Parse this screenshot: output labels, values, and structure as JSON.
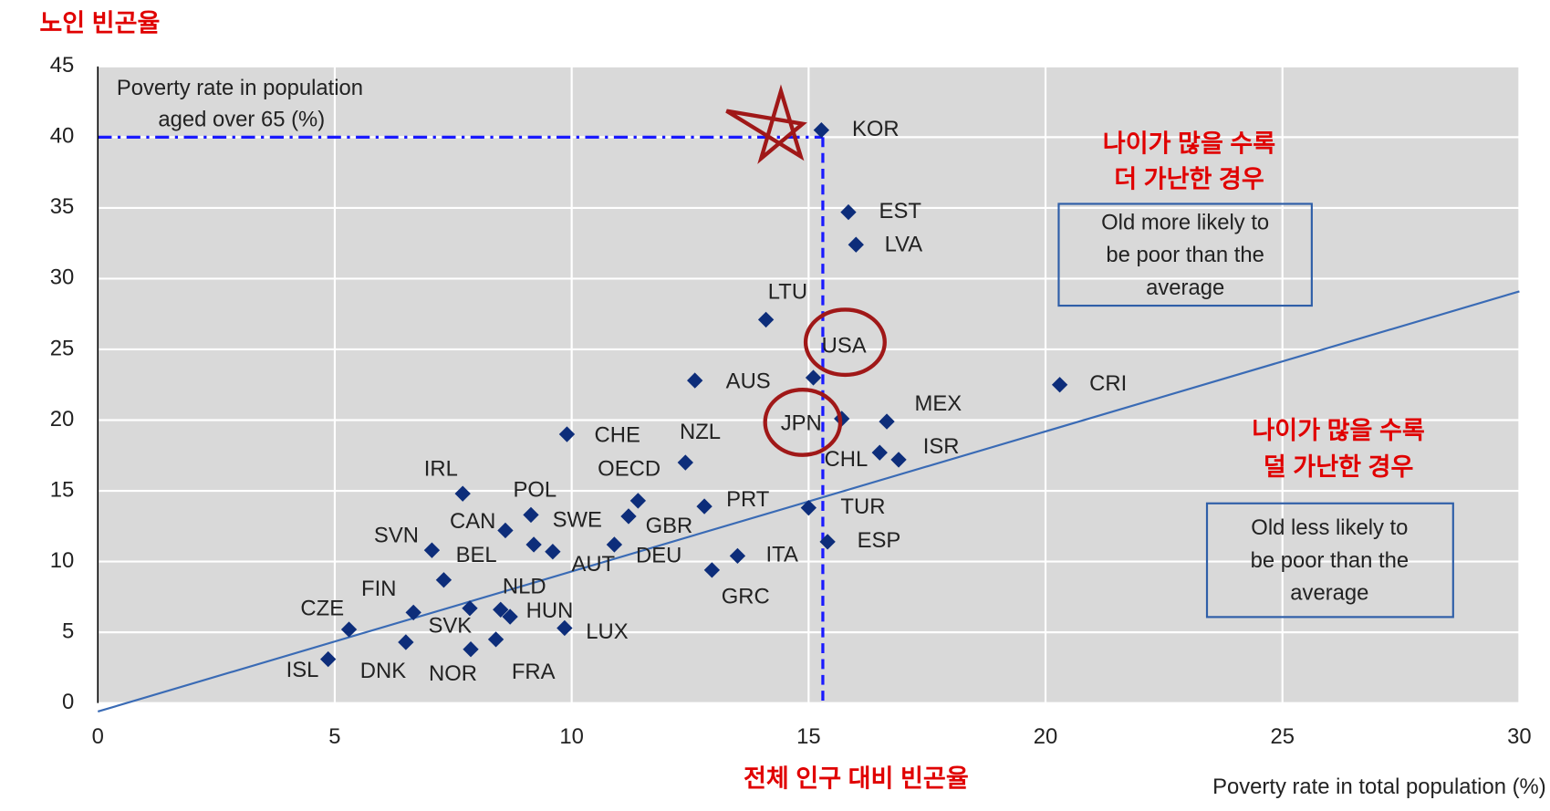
{
  "chart_data": {
    "type": "scatter",
    "title": "노인 빈곤율",
    "subtitle": "전체 인구 대비 빈곤율",
    "ylabel": [
      "Poverty rate in population",
      "aged over 65 (%)"
    ],
    "xlabel": "Poverty rate in total population (%)",
    "labels": [
      "KOR",
      "EST",
      "LVA",
      "LTU",
      "USA",
      "AUS",
      "CRI",
      "MEX",
      "JPN",
      "CHE",
      "NZL",
      "CHL",
      "ISR",
      "OECD",
      "IRL",
      "POL",
      "PRT",
      "TUR",
      "CAN",
      "SWE",
      "GBR",
      "DEU",
      "AUT",
      "BEL",
      "SVN",
      "ESP",
      "ITA",
      "GRC",
      "FIN",
      "SVK",
      "NLD",
      "HUN",
      "CZE",
      "LUX",
      "DNK",
      "NOR",
      "FRA",
      "ISL"
    ],
    "x": [
      15.27,
      15.84,
      16.0,
      14.1,
      15.1,
      12.6,
      20.3,
      16.65,
      15.7,
      9.9,
      12.4,
      16.5,
      16.9,
      11.4,
      7.7,
      9.14,
      12.8,
      15.0,
      8.6,
      9.2,
      11.2,
      10.9,
      9.6,
      7.3,
      7.05,
      15.4,
      13.5,
      12.96,
      6.66,
      7.85,
      8.5,
      8.7,
      5.3,
      9.85,
      6.5,
      7.87,
      8.4,
      4.86
    ],
    "values": [
      40.5,
      34.7,
      32.4,
      27.1,
      23.0,
      22.8,
      22.5,
      19.9,
      20.1,
      19.0,
      17.0,
      17.7,
      17.2,
      14.3,
      14.8,
      13.3,
      13.9,
      13.8,
      12.2,
      11.2,
      13.2,
      11.2,
      10.7,
      8.7,
      10.8,
      11.4,
      10.4,
      9.4,
      6.4,
      6.7,
      6.6,
      6.1,
      5.2,
      5.3,
      4.3,
      3.8,
      4.5,
      3.1
    ],
    "color": "#0d2d7a",
    "trend_line": {
      "x": [
        0,
        30
      ],
      "y": [
        -0.6,
        29.1
      ],
      "color": "#3a6bb5"
    },
    "reference": {
      "x": 15.3,
      "y": 40,
      "color": "#1a1aff"
    },
    "annotations": [
      {
        "heading": [
          "나이가 많을 수록",
          "더 가난한 경우"
        ],
        "box": [
          "Old more likely to",
          "be poor than the",
          "average"
        ]
      },
      {
        "heading": [
          "나이가 많을 수록",
          "덜 가난한 경우"
        ],
        "box": [
          "Old less likely to",
          "be poor than the",
          "average"
        ]
      }
    ],
    "xlim": [
      0,
      30
    ],
    "xticks": [
      0,
      5,
      10,
      15,
      20,
      25,
      30
    ],
    "ylim": [
      0,
      45
    ],
    "yticks": [
      0,
      5,
      10,
      15,
      20,
      25,
      30,
      35,
      40,
      45
    ],
    "grid": true
  }
}
